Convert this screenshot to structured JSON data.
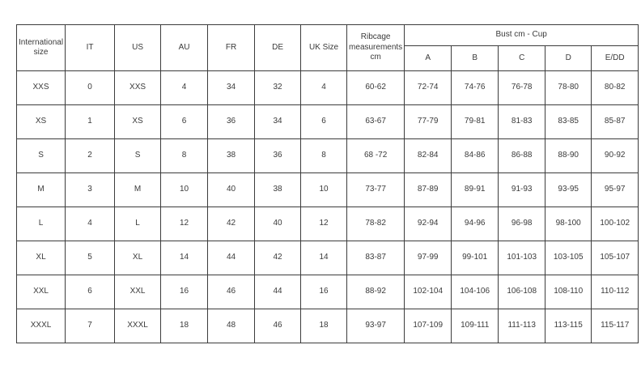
{
  "chart_data": {
    "type": "table",
    "header": {
      "international_size": "International size",
      "size_columns": [
        "IT",
        "US",
        "AU",
        "FR",
        "DE",
        "UK Size"
      ],
      "ribcage": "Ribcage measurements cm",
      "bust_group": "Bust cm - Cup",
      "cup_columns": [
        "A",
        "B",
        "C",
        "D",
        "E/DD"
      ]
    },
    "rows": [
      [
        "XXS",
        "0",
        "XXS",
        "4",
        "34",
        "32",
        "4",
        "60-62",
        "72-74",
        "74-76",
        "76-78",
        "78-80",
        "80-82"
      ],
      [
        "XS",
        "1",
        "XS",
        "6",
        "36",
        "34",
        "6",
        "63-67",
        "77-79",
        "79-81",
        "81-83",
        "83-85",
        "85-87"
      ],
      [
        "S",
        "2",
        "S",
        "8",
        "38",
        "36",
        "8",
        "68 -72",
        "82-84",
        "84-86",
        "86-88",
        "88-90",
        "90-92"
      ],
      [
        "M",
        "3",
        "M",
        "10",
        "40",
        "38",
        "10",
        "73-77",
        "87-89",
        "89-91",
        "91-93",
        "93-95",
        "95-97"
      ],
      [
        "L",
        "4",
        "L",
        "12",
        "42",
        "40",
        "12",
        "78-82",
        "92-94",
        "94-96",
        "96-98",
        "98-100",
        "100-102"
      ],
      [
        "XL",
        "5",
        "XL",
        "14",
        "44",
        "42",
        "14",
        "83-87",
        "97-99",
        "99-101",
        "101-103",
        "103-105",
        "105-107"
      ],
      [
        "XXL",
        "6",
        "XXL",
        "16",
        "46",
        "44",
        "16",
        "88-92",
        "102-104",
        "104-106",
        "106-108",
        "108-110",
        "110-112"
      ],
      [
        "XXXL",
        "7",
        "XXXL",
        "18",
        "48",
        "46",
        "18",
        "93-97",
        "107-109",
        "109-111",
        "111-113",
        "113-115",
        "115-117"
      ]
    ]
  }
}
